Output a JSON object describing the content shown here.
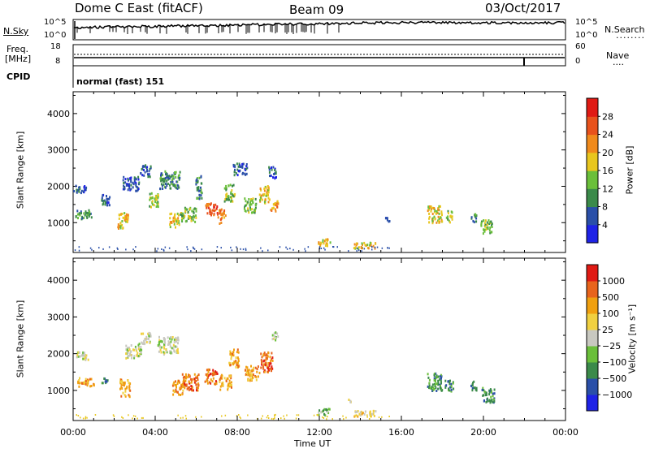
{
  "header": {
    "title": "Dome C East (fitACF)",
    "beam": "Beam 09",
    "date": "03/Oct/2017"
  },
  "top_panels": {
    "nsky_label": "N.Sky",
    "nsky_ticks": [
      "10^5",
      "10^0"
    ],
    "nsearch_label": "N.Search",
    "nsearch_ticks": [
      "10^5",
      "10^0"
    ],
    "freq_label": "Freq.",
    "freq_unit": "[MHz]",
    "freq_ticks": [
      "18",
      "8"
    ],
    "nave_label": "Nave",
    "nave_ticks": [
      "60",
      "0"
    ],
    "cpid_label": "CPID",
    "cpid_value": "normal (fast) 151"
  },
  "chart_data": [
    {
      "type": "heatmap",
      "panel": "power",
      "ylabel": "Slant Range [km]",
      "yticks": [
        "1000",
        "2000",
        "3000",
        "4000"
      ],
      "ylim": [
        180,
        4600
      ],
      "xlim": [
        0,
        24
      ],
      "xticks": [
        "00:00",
        "04:00",
        "08:00",
        "12:00",
        "16:00",
        "20:00",
        "00:00"
      ],
      "colorbar_label": "Power [dB]",
      "colorbar_ticks": [
        "28",
        "24",
        "20",
        "16",
        "12",
        "8",
        "4"
      ],
      "colorbar_colors": [
        "#1e22e6",
        "#2a4fa8",
        "#3b8a4a",
        "#6abf3a",
        "#e8c61e",
        "#f08a1c",
        "#e8521c",
        "#e01a14"
      ],
      "blobs": [
        {
          "t": 0.3,
          "r": 1950,
          "w": 0.6,
          "h": 150,
          "level": 1
        },
        {
          "t": 0.5,
          "r": 1250,
          "w": 0.8,
          "h": 150,
          "level": 2
        },
        {
          "t": 1.5,
          "r": 1650,
          "w": 0.5,
          "h": 180,
          "level": 1
        },
        {
          "t": 2.4,
          "r": 1100,
          "w": 0.5,
          "h": 300,
          "level": 4
        },
        {
          "t": 2.8,
          "r": 2100,
          "w": 0.8,
          "h": 250,
          "level": 1
        },
        {
          "t": 3.5,
          "r": 2450,
          "w": 0.5,
          "h": 200,
          "level": 1
        },
        {
          "t": 3.9,
          "r": 1650,
          "w": 0.5,
          "h": 250,
          "level": 3
        },
        {
          "t": 4.7,
          "r": 2200,
          "w": 1.0,
          "h": 300,
          "level": 2
        },
        {
          "t": 4.9,
          "r": 1100,
          "w": 0.5,
          "h": 250,
          "level": 4
        },
        {
          "t": 5.6,
          "r": 1250,
          "w": 0.8,
          "h": 250,
          "level": 3
        },
        {
          "t": 6.1,
          "r": 2000,
          "w": 0.3,
          "h": 400,
          "level": 2
        },
        {
          "t": 6.7,
          "r": 1400,
          "w": 0.6,
          "h": 200,
          "level": 6
        },
        {
          "t": 7.2,
          "r": 1200,
          "w": 0.4,
          "h": 250,
          "level": 5
        },
        {
          "t": 7.6,
          "r": 1850,
          "w": 0.5,
          "h": 300,
          "level": 3
        },
        {
          "t": 8.1,
          "r": 2500,
          "w": 0.7,
          "h": 200,
          "level": 1
        },
        {
          "t": 8.6,
          "r": 1500,
          "w": 0.6,
          "h": 250,
          "level": 3
        },
        {
          "t": 9.3,
          "r": 1800,
          "w": 0.5,
          "h": 300,
          "level": 4
        },
        {
          "t": 9.8,
          "r": 1500,
          "w": 0.4,
          "h": 200,
          "level": 5
        },
        {
          "t": 9.7,
          "r": 2400,
          "w": 0.4,
          "h": 200,
          "level": 1
        },
        {
          "t": 12.2,
          "r": 480,
          "w": 0.6,
          "h": 120,
          "level": 4
        },
        {
          "t": 14.2,
          "r": 400,
          "w": 1.1,
          "h": 100,
          "level": 4
        },
        {
          "t": 15.3,
          "r": 1100,
          "w": 0.3,
          "h": 80,
          "level": 1
        },
        {
          "t": 17.6,
          "r": 1250,
          "w": 0.7,
          "h": 300,
          "level": 4
        },
        {
          "t": 18.3,
          "r": 1200,
          "w": 0.3,
          "h": 200,
          "level": 3
        },
        {
          "t": 20.1,
          "r": 900,
          "w": 0.6,
          "h": 250,
          "level": 3
        },
        {
          "t": 19.5,
          "r": 1150,
          "w": 0.3,
          "h": 150,
          "level": 2
        }
      ]
    },
    {
      "type": "heatmap",
      "panel": "velocity",
      "ylabel": "Slant Range [km]",
      "yticks": [
        "1000",
        "2000",
        "3000",
        "4000"
      ],
      "ylim": [
        180,
        4600
      ],
      "xlim": [
        0,
        24
      ],
      "xlabel": "Time UT",
      "xticks": [
        "00:00",
        "04:00",
        "08:00",
        "12:00",
        "16:00",
        "20:00",
        "00:00"
      ],
      "colorbar_label": "Velocity [m s⁻¹]",
      "colorbar_ticks": [
        "1000",
        "500",
        "100",
        "25",
        "−25",
        "−100",
        "−500",
        "−1000"
      ],
      "colorbar_colors": [
        "#1e22e6",
        "#2a4fa8",
        "#3b8a4a",
        "#6abf3a",
        "#c8c8c0",
        "#f0d040",
        "#f0a010",
        "#e8641c",
        "#e01a14"
      ],
      "blobs": [
        {
          "t": 0.4,
          "r": 1950,
          "w": 0.6,
          "h": 150,
          "level": 4
        },
        {
          "t": 0.6,
          "r": 1250,
          "w": 0.8,
          "h": 150,
          "level": 6
        },
        {
          "t": 1.5,
          "r": 1300,
          "w": 0.3,
          "h": 120,
          "level": 2
        },
        {
          "t": 2.5,
          "r": 1100,
          "w": 0.5,
          "h": 300,
          "level": 6
        },
        {
          "t": 2.9,
          "r": 2100,
          "w": 0.8,
          "h": 250,
          "level": 4
        },
        {
          "t": 3.5,
          "r": 2450,
          "w": 0.5,
          "h": 200,
          "level": 4
        },
        {
          "t": 4.6,
          "r": 2250,
          "w": 1.0,
          "h": 300,
          "level": 4
        },
        {
          "t": 5.1,
          "r": 1100,
          "w": 0.6,
          "h": 250,
          "level": 6
        },
        {
          "t": 5.7,
          "r": 1250,
          "w": 0.8,
          "h": 300,
          "level": 7
        },
        {
          "t": 6.7,
          "r": 1400,
          "w": 0.6,
          "h": 250,
          "level": 7
        },
        {
          "t": 7.4,
          "r": 1250,
          "w": 0.6,
          "h": 250,
          "level": 6
        },
        {
          "t": 7.8,
          "r": 1900,
          "w": 0.5,
          "h": 300,
          "level": 6
        },
        {
          "t": 8.7,
          "r": 1500,
          "w": 0.7,
          "h": 250,
          "level": 6
        },
        {
          "t": 9.4,
          "r": 1800,
          "w": 0.6,
          "h": 350,
          "level": 7
        },
        {
          "t": 9.8,
          "r": 2500,
          "w": 0.3,
          "h": 150,
          "level": 4
        },
        {
          "t": 12.2,
          "r": 430,
          "w": 0.6,
          "h": 120,
          "level": 3
        },
        {
          "t": 14.2,
          "r": 400,
          "w": 1.1,
          "h": 100,
          "level": 5
        },
        {
          "t": 13.4,
          "r": 760,
          "w": 0.3,
          "h": 60,
          "level": 4
        },
        {
          "t": 17.6,
          "r": 1250,
          "w": 0.7,
          "h": 300,
          "level": 2
        },
        {
          "t": 18.3,
          "r": 1150,
          "w": 0.4,
          "h": 200,
          "level": 2
        },
        {
          "t": 20.2,
          "r": 900,
          "w": 0.6,
          "h": 250,
          "level": 2
        },
        {
          "t": 19.5,
          "r": 1150,
          "w": 0.3,
          "h": 150,
          "level": 2
        }
      ]
    }
  ]
}
